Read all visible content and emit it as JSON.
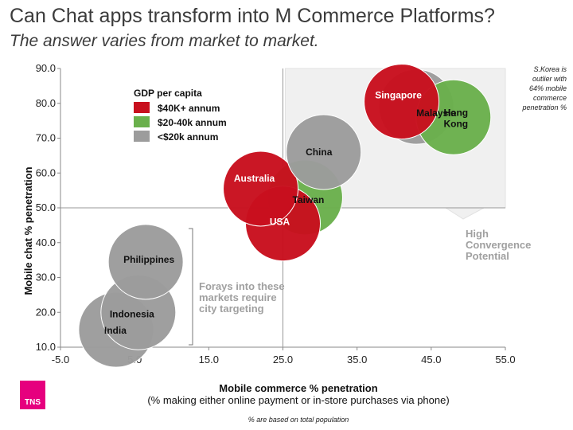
{
  "title": "Can Chat apps transform into M Commerce Platforms?",
  "subtitle": "The answer varies from market to market.",
  "chart_data": {
    "type": "scatter",
    "xlabel": "Mobile commerce % penetration",
    "xlabel_sub": "(% making either online payment or in-store purchases via phone)",
    "ylabel": "Mobile chat % penetration",
    "xlim": [
      -5,
      55
    ],
    "ylim": [
      10,
      90
    ],
    "x_ticks": [
      "-5.0",
      "5.0",
      "15.0",
      "25.0",
      "35.0",
      "45.0",
      "55.0"
    ],
    "y_ticks": [
      "10.0",
      "20.0",
      "30.0",
      "40.0",
      "50.0",
      "60.0",
      "70.0",
      "80.0",
      "90.0"
    ],
    "divider_x": 25,
    "divider_y": 50,
    "legend": {
      "title": "GDP per capita",
      "position": "top-left",
      "entries": [
        {
          "label": "$40K+ annum",
          "color": "#c8101e"
        },
        {
          "label": "$20-40k annum",
          "color": "#6ab04c"
        },
        {
          "label": "<$20k annum",
          "color": "#9c9c9c"
        }
      ]
    },
    "points": [
      {
        "label": "India",
        "x": 2.5,
        "y": 15,
        "group": "<$20k annum"
      },
      {
        "label": "Indonesia",
        "x": 5.5,
        "y": 20,
        "group": "<$20k annum"
      },
      {
        "label": "Philippines",
        "x": 6.5,
        "y": 34.5,
        "group": "<$20k annum"
      },
      {
        "label": "Taiwan",
        "x": 28,
        "y": 53,
        "group": "$20-40k annum"
      },
      {
        "label": "USA",
        "x": 25,
        "y": 45.5,
        "group": "$40K+ annum"
      },
      {
        "label": "Australia",
        "x": 22,
        "y": 55.5,
        "group": "$40K+ annum"
      },
      {
        "label": "China",
        "x": 30.5,
        "y": 66,
        "group": "<$20k annum"
      },
      {
        "label": "Malaysia",
        "x": 43,
        "y": 79,
        "group": "<$20k annum"
      },
      {
        "label": "Hong Kong",
        "x": 48,
        "y": 76,
        "group": "$20-40k annum"
      },
      {
        "label": "Singapore",
        "x": 41,
        "y": 80.5,
        "group": "$40K+ annum"
      }
    ],
    "annotations": {
      "high_convergence_line1": "High",
      "high_convergence_line2": "Convergence",
      "high_convergence_line3": "Potential",
      "forays_line1": "Forays into these",
      "forays_line2": "markets require",
      "forays_line3": "city targeting",
      "korea_line1": "S.Korea is",
      "korea_line2": "outlier with",
      "korea_line3": "64% mobile",
      "korea_line4": "commerce",
      "korea_line5": "penetration %"
    }
  },
  "footnote": "% are based on total population",
  "logo_text": "TNS"
}
